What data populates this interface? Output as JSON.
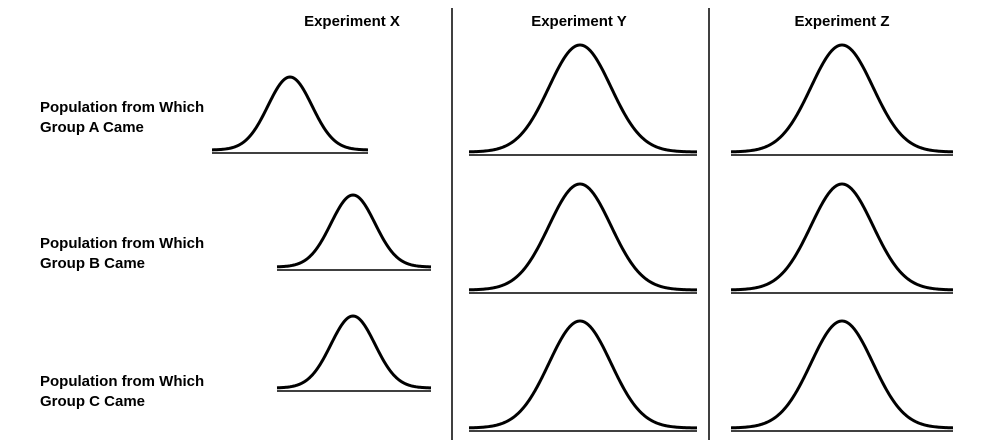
{
  "columns": [
    {
      "title": "Experiment X"
    },
    {
      "title": "Experiment Y"
    },
    {
      "title": "Experiment Z"
    }
  ],
  "rows": [
    {
      "line1": "Population from Which",
      "line2": "Group A Came"
    },
    {
      "line1": "Population from Which",
      "line2": "Group B Came"
    },
    {
      "line1": "Population from Which",
      "line2": "Group C Came"
    }
  ],
  "colors": {
    "ink": "#000000",
    "background": "#ffffff"
  }
}
